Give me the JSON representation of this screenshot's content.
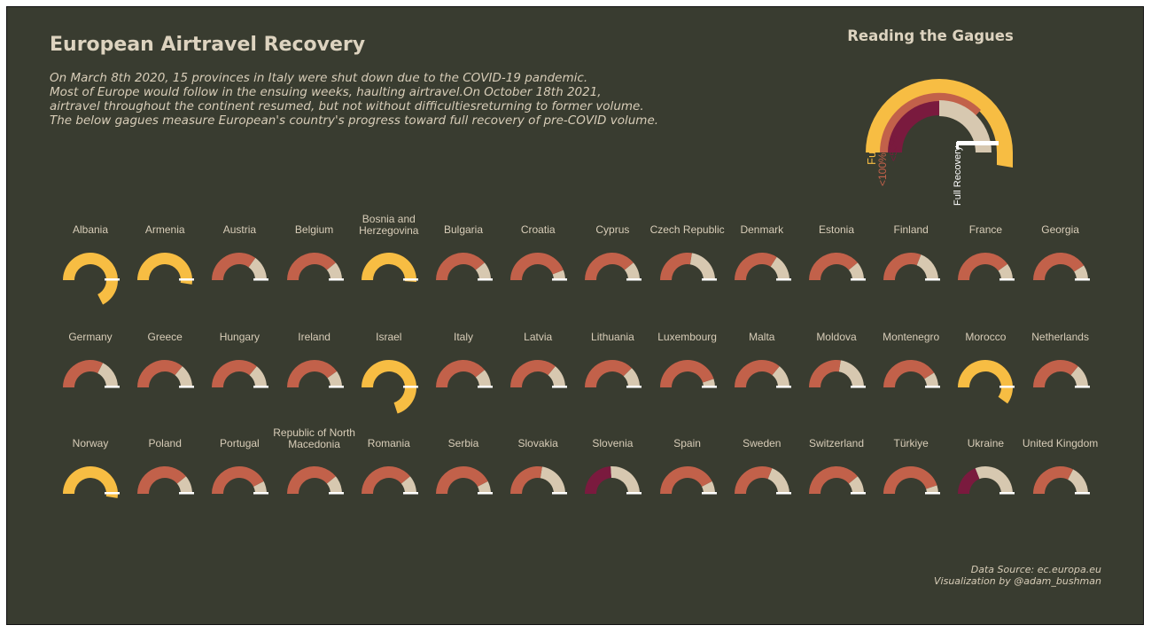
{
  "title": "European Airtravel Recovery",
  "subtitle_lines": [
    "On March 8th 2020, 15 provinces in Italy were shut down due to the COVID-19 pandemic.",
    "Most of Europe would follow in the ensuing weeks, haulting airtravel.On October 18th 2021,",
    "airtravel throughout the continent resumed, but not without difficultiesreturning to former volume.",
    "The below gagues measure European's country's progress toward full recovery of pre-COVID volume."
  ],
  "legend": {
    "title": "Reading the Gagues",
    "full_label": "Full",
    "lt100_label": "<100%",
    "lt50_label": "<50%",
    "full_recovery_label": "Full Recovery"
  },
  "source": {
    "line1": "Data Source: ec.europa.eu",
    "line2": "Visualization by @adam_bushman"
  },
  "colors": {
    "background": "#393c30",
    "full": "#f7bd43",
    "under100": "#c2614a",
    "under50": "#7a1a3e",
    "remaining": "#d7c8b0",
    "marker": "#ffffff"
  },
  "chart_data": {
    "type": "gauge",
    "unit": "fraction of pre-COVID volume",
    "countries": [
      {
        "name": "Albania",
        "value": 1.35
      },
      {
        "name": "Armenia",
        "value": 1.05
      },
      {
        "name": "Austria",
        "value": 0.7
      },
      {
        "name": "Belgium",
        "value": 0.78
      },
      {
        "name": "Bosnia and Herzegovina",
        "value": 1.02
      },
      {
        "name": "Bulgaria",
        "value": 0.78
      },
      {
        "name": "Croatia",
        "value": 0.88
      },
      {
        "name": "Cyprus",
        "value": 0.78
      },
      {
        "name": "Czech Republic",
        "value": 0.55
      },
      {
        "name": "Denmark",
        "value": 0.68
      },
      {
        "name": "Estonia",
        "value": 0.78
      },
      {
        "name": "Finland",
        "value": 0.62
      },
      {
        "name": "France",
        "value": 0.8
      },
      {
        "name": "Georgia",
        "value": 0.82
      },
      {
        "name": "Germany",
        "value": 0.65
      },
      {
        "name": "Greece",
        "value": 0.72
      },
      {
        "name": "Hungary",
        "value": 0.72
      },
      {
        "name": "Ireland",
        "value": 0.8
      },
      {
        "name": "Israel",
        "value": 1.4
      },
      {
        "name": "Italy",
        "value": 0.78
      },
      {
        "name": "Latvia",
        "value": 0.72
      },
      {
        "name": "Lithuania",
        "value": 0.75
      },
      {
        "name": "Luxembourg",
        "value": 0.9
      },
      {
        "name": "Malta",
        "value": 0.72
      },
      {
        "name": "Moldova",
        "value": 0.55
      },
      {
        "name": "Montenegro",
        "value": 0.82
      },
      {
        "name": "Morocco",
        "value": 1.2
      },
      {
        "name": "Netherlands",
        "value": 0.72
      },
      {
        "name": "Norway",
        "value": 1.05
      },
      {
        "name": "Poland",
        "value": 0.78
      },
      {
        "name": "Portugal",
        "value": 0.85
      },
      {
        "name": "Republic of North Macedonia",
        "value": 0.78
      },
      {
        "name": "Romania",
        "value": 0.78
      },
      {
        "name": "Serbia",
        "value": 0.85
      },
      {
        "name": "Slovakia",
        "value": 0.55
      },
      {
        "name": "Slovenia",
        "value": 0.48
      },
      {
        "name": "Spain",
        "value": 0.85
      },
      {
        "name": "Sweden",
        "value": 0.62
      },
      {
        "name": "Switzerland",
        "value": 0.78
      },
      {
        "name": "Türkiye",
        "value": 0.9
      },
      {
        "name": "Ukraine",
        "value": 0.38
      },
      {
        "name": "United Kingdom",
        "value": 0.65
      }
    ]
  }
}
